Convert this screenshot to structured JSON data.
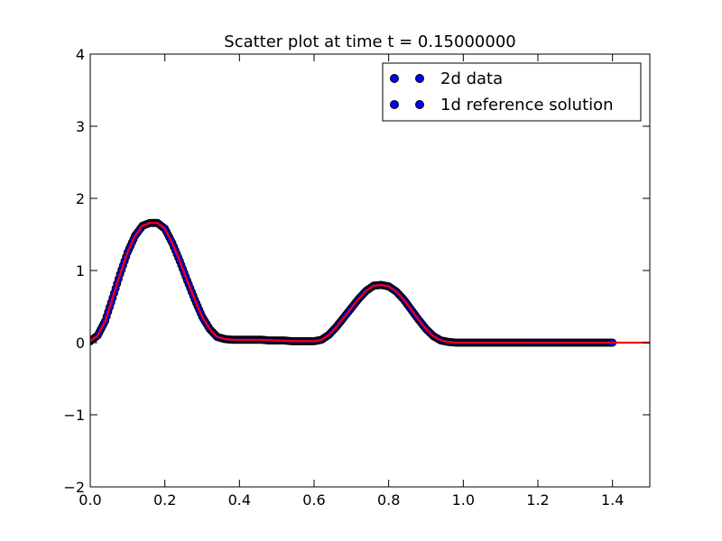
{
  "chart_data": {
    "type": "scatter",
    "title": "Scatter plot at time t =     0.15000000",
    "xlabel": "",
    "ylabel": "",
    "xlim": [
      0.0,
      1.5
    ],
    "ylim": [
      -2,
      4
    ],
    "x_ticks": [
      "0.0",
      "0.2",
      "0.4",
      "0.6",
      "0.8",
      "1.0",
      "1.2",
      "1.4"
    ],
    "y_ticks": [
      "−2",
      "−1",
      "0",
      "1",
      "2",
      "3",
      "4"
    ],
    "grid": false,
    "legend_position": "upper-right",
    "legend": [
      "2d data",
      "1d reference solution"
    ],
    "colors": {
      "scatter_fill": "#0000ff",
      "scatter_edge": "#000000",
      "reference_line": "#ff0000",
      "axes": "#000000"
    },
    "series": [
      {
        "name": "2d data",
        "style": "markers",
        "x": [
          0.0,
          0.02,
          0.04,
          0.06,
          0.08,
          0.1,
          0.12,
          0.14,
          0.16,
          0.18,
          0.2,
          0.22,
          0.24,
          0.26,
          0.28,
          0.3,
          0.32,
          0.34,
          0.36,
          0.38,
          0.4,
          0.42,
          0.44,
          0.46,
          0.48,
          0.5,
          0.52,
          0.54,
          0.56,
          0.58,
          0.6,
          0.62,
          0.64,
          0.66,
          0.68,
          0.7,
          0.72,
          0.74,
          0.76,
          0.78,
          0.8,
          0.82,
          0.84,
          0.86,
          0.88,
          0.9,
          0.92,
          0.94,
          0.96,
          0.98,
          1.0,
          1.02,
          1.04,
          1.06,
          1.08,
          1.1,
          1.12,
          1.14,
          1.16,
          1.18,
          1.2,
          1.22,
          1.24,
          1.26,
          1.28,
          1.3,
          1.32,
          1.34,
          1.36,
          1.38,
          1.4
        ],
        "y": [
          0.02,
          0.1,
          0.3,
          0.62,
          0.95,
          1.25,
          1.48,
          1.62,
          1.66,
          1.66,
          1.58,
          1.38,
          1.13,
          0.86,
          0.6,
          0.36,
          0.19,
          0.08,
          0.05,
          0.04,
          0.04,
          0.04,
          0.04,
          0.04,
          0.03,
          0.03,
          0.03,
          0.02,
          0.02,
          0.02,
          0.02,
          0.04,
          0.11,
          0.22,
          0.35,
          0.48,
          0.61,
          0.72,
          0.79,
          0.8,
          0.78,
          0.71,
          0.6,
          0.46,
          0.32,
          0.19,
          0.09,
          0.03,
          0.01,
          0.0,
          0.0,
          0.0,
          0.0,
          0.0,
          0.0,
          0.0,
          0.0,
          0.0,
          0.0,
          0.0,
          0.0,
          0.0,
          0.0,
          0.0,
          0.0,
          0.0,
          0.0,
          0.0,
          0.0,
          0.0,
          0.0
        ]
      },
      {
        "name": "1d reference solution",
        "style": "line",
        "x": [
          0.0,
          0.02,
          0.04,
          0.06,
          0.08,
          0.1,
          0.12,
          0.14,
          0.16,
          0.18,
          0.2,
          0.22,
          0.24,
          0.26,
          0.28,
          0.3,
          0.32,
          0.34,
          0.36,
          0.38,
          0.4,
          0.45,
          0.5,
          0.55,
          0.6,
          0.62,
          0.64,
          0.66,
          0.68,
          0.7,
          0.72,
          0.74,
          0.76,
          0.78,
          0.8,
          0.82,
          0.84,
          0.86,
          0.88,
          0.9,
          0.92,
          0.94,
          0.96,
          0.98,
          1.0,
          1.1,
          1.2,
          1.3,
          1.4,
          1.5
        ],
        "y": [
          0.02,
          0.1,
          0.3,
          0.62,
          0.95,
          1.25,
          1.48,
          1.62,
          1.66,
          1.66,
          1.58,
          1.38,
          1.13,
          0.86,
          0.6,
          0.36,
          0.19,
          0.08,
          0.05,
          0.04,
          0.04,
          0.04,
          0.03,
          0.02,
          0.02,
          0.04,
          0.11,
          0.22,
          0.35,
          0.48,
          0.61,
          0.72,
          0.79,
          0.8,
          0.78,
          0.71,
          0.6,
          0.46,
          0.32,
          0.19,
          0.09,
          0.03,
          0.01,
          0.0,
          0.0,
          0.0,
          0.0,
          0.0,
          0.0,
          0.0
        ]
      }
    ]
  }
}
